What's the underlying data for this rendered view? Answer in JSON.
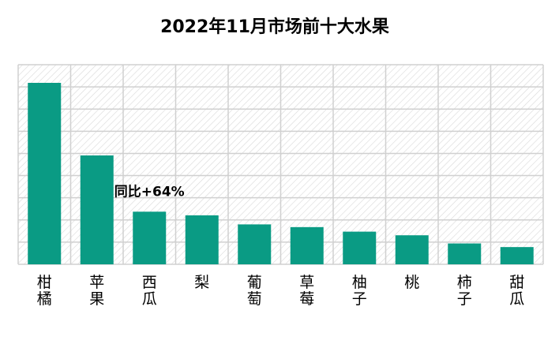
{
  "chart_data": {
    "type": "bar",
    "title": "2022年11月市场前十大水果",
    "categories": [
      "柑橘",
      "苹果",
      "西瓜",
      "梨",
      "葡萄",
      "草莓",
      "柚子",
      "桃",
      "柿子",
      "甜瓜"
    ],
    "values": [
      100,
      60,
      29,
      27,
      22,
      20.5,
      18,
      16,
      11.5,
      9.5
    ],
    "ylim": [
      0,
      110
    ],
    "grid": true,
    "annotations": [
      {
        "text": "同比+64%",
        "category": "西瓜"
      }
    ],
    "colors": {
      "bar": "#0a9b84",
      "grid": "#d0d0d0",
      "hatch": "#d8d8d8",
      "text": "#000000"
    }
  }
}
